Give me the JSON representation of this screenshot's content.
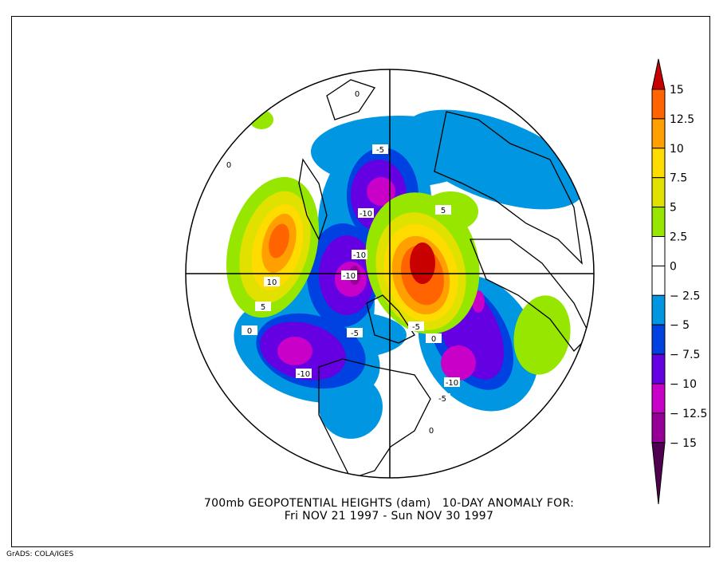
{
  "title": {
    "line1": "700mb GEOPOTENTIAL HEIGHTS (dam)   10-DAY ANOMALY FOR:",
    "line2": "Fri NOV 21 1997 - Sun NOV 30 1997"
  },
  "credit": "GrADS: COLA/IGES",
  "colorbar": {
    "labels": [
      "15",
      "12.5",
      "10",
      "7.5",
      "5",
      "2.5",
      "0",
      "-2.5",
      "-5",
      "-7.5",
      "-10",
      "-12.5",
      "-15"
    ],
    "colors": [
      "#c80000",
      "#ff6400",
      "#ffa000",
      "#ffdc00",
      "#e1e100",
      "#96e600",
      "#ffffff",
      "#ffffff",
      "#0096e1",
      "#0041e1",
      "#6400e1",
      "#c800c8",
      "#960096",
      "#500050"
    ]
  },
  "contour_labels": [
    "-5",
    "-10",
    "5",
    "-10",
    "-10",
    "10",
    "5",
    "0",
    "-5",
    "-5",
    "-10",
    "-10",
    "-5",
    "0",
    "0",
    "0",
    "0"
  ]
}
